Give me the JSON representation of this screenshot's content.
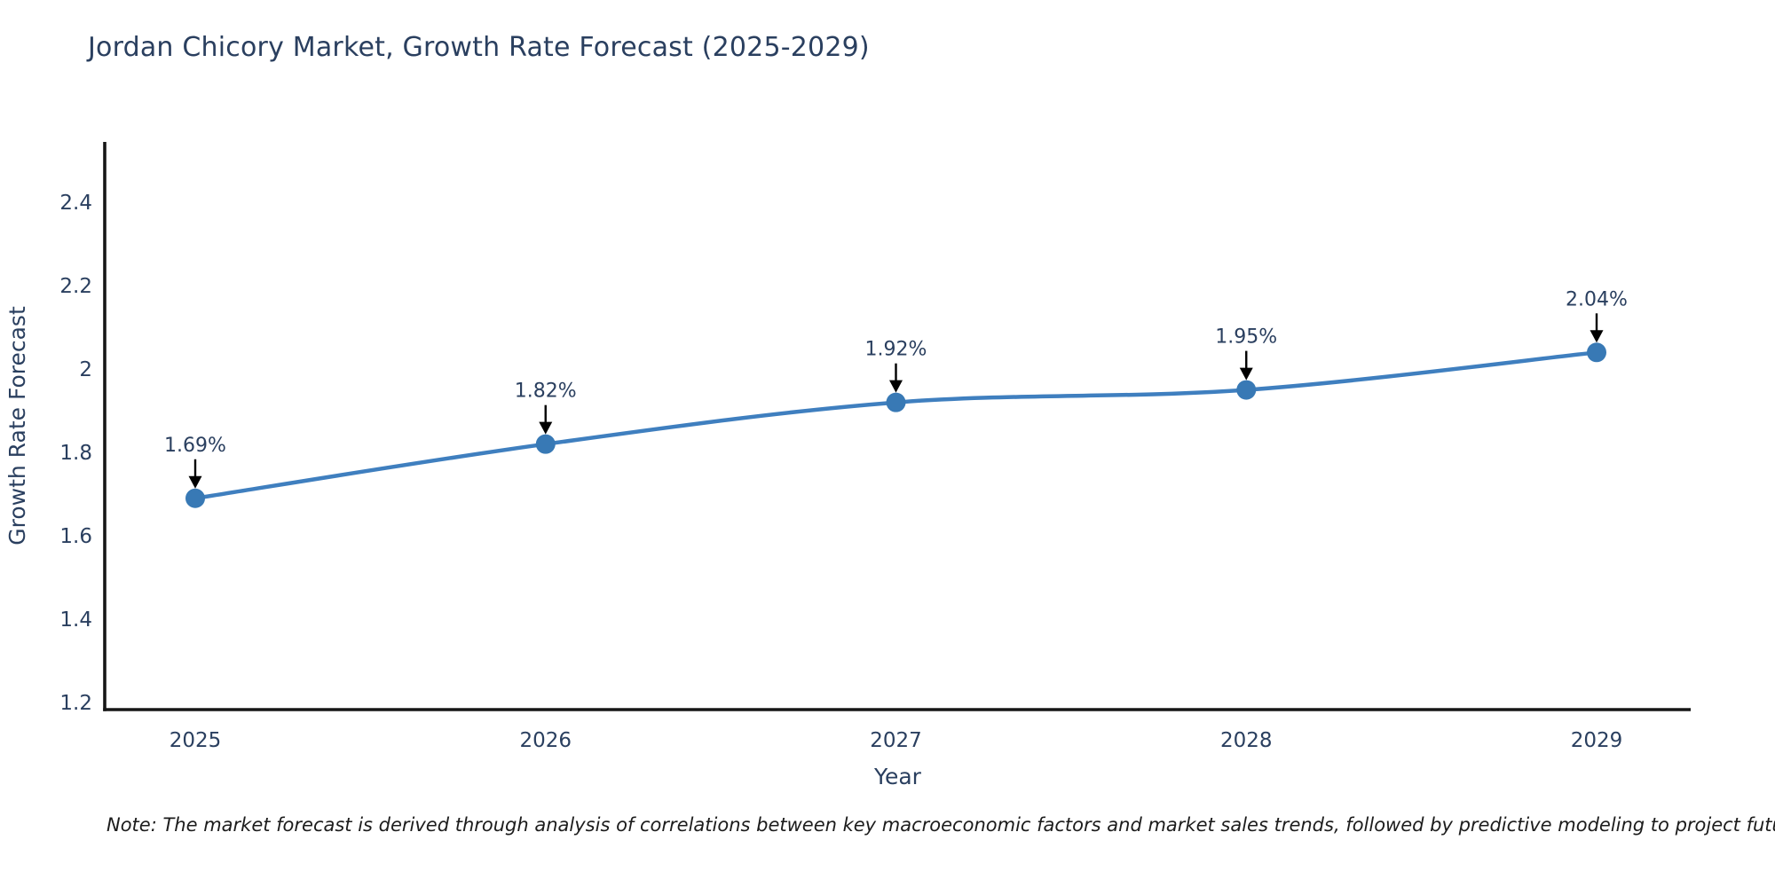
{
  "chart_data": {
    "type": "line",
    "title": "Jordan Chicory Market, Growth Rate Forecast (2025-2029)",
    "x": [
      "2025",
      "2026",
      "2027",
      "2028",
      "2029"
    ],
    "y": [
      1.69,
      1.82,
      1.92,
      1.95,
      2.04
    ],
    "point_labels": [
      "1.69%",
      "1.82%",
      "1.92%",
      "1.95%",
      "2.04%"
    ],
    "xlabel": "Year",
    "ylabel": "Growth Rate Forecast",
    "ytick_values": [
      1.2,
      1.4,
      1.6,
      1.8,
      2.0,
      2.2,
      2.4
    ],
    "ytick_labels": [
      "1.2",
      "1.4",
      "1.6",
      "1.8",
      "2",
      "2.2",
      "2.4"
    ],
    "ylim": [
      1.183,
      2.545
    ],
    "grid": false,
    "legend_position": "none",
    "line_shape": "spline",
    "colors": {
      "line": "#3f7fbf",
      "marker": "#3879b5",
      "axis": "#161616",
      "text": "#2a3f5f",
      "annotation_arrow": "#000000"
    }
  },
  "footnote": {
    "text": "Note: The market forecast is derived through analysis of correlations between key macroeconomic factors and market sales trends, followed by predictive modeling to project future sales"
  }
}
